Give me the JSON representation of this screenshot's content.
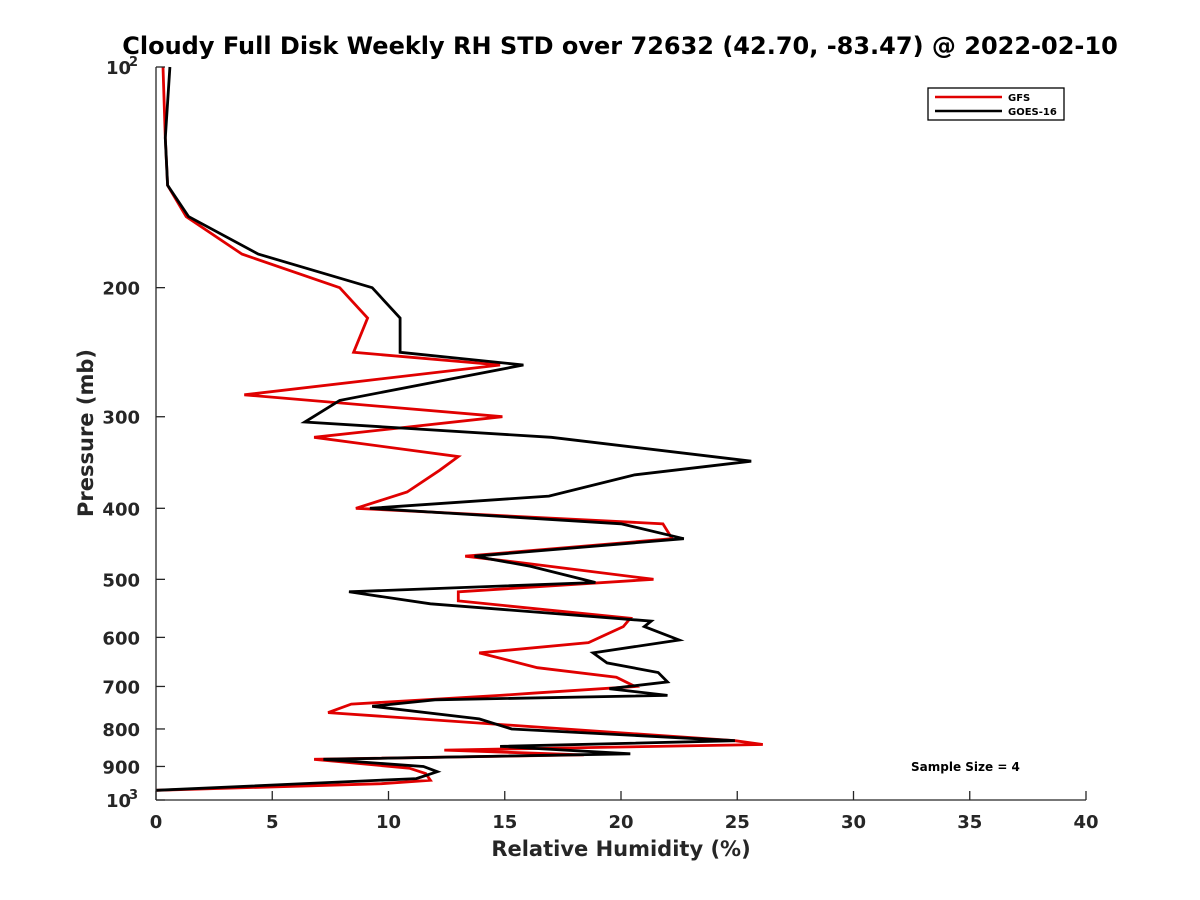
{
  "chart_data": {
    "type": "line",
    "title": "Cloudy Full Disk Weekly RH STD over 72632 (42.70, -83.47) @ 2022-02-10",
    "xlabel": "Relative Humidity (%)",
    "ylabel": "Pressure (mb)",
    "xlim": [
      0,
      40
    ],
    "ylim": [
      100,
      1000
    ],
    "y_scale": "log",
    "y_reversed": true,
    "grid": false,
    "legend_position": "top-right",
    "x_ticks": [
      "0",
      "5",
      "10",
      "15",
      "20",
      "25",
      "30",
      "35",
      "40"
    ],
    "y_ticks": [
      {
        "value": 100,
        "base": "10",
        "exp": "2"
      },
      {
        "value": 200,
        "label": "200"
      },
      {
        "value": 300,
        "label": "300"
      },
      {
        "value": 400,
        "label": "400"
      },
      {
        "value": 500,
        "label": "500"
      },
      {
        "value": 600,
        "label": "600"
      },
      {
        "value": 700,
        "label": "700"
      },
      {
        "value": 800,
        "label": "800"
      },
      {
        "value": 900,
        "label": "900"
      },
      {
        "value": 1000,
        "base": "10",
        "exp": "3"
      }
    ],
    "annotation": "Sample Size = 4",
    "series": [
      {
        "name": "GFS",
        "color": "#e00000",
        "x": [
          0.3,
          0.4,
          0.5,
          1.3,
          3.7,
          7.9,
          9.1,
          8.5,
          14.8,
          3.8,
          14.9,
          6.8,
          13.0,
          12.2,
          10.8,
          8.6,
          21.8,
          22.2,
          13.3,
          15.8,
          21.4,
          13.0,
          13.0,
          20.4,
          20.1,
          18.6,
          13.9,
          16.4,
          19.8,
          20.6,
          16.2,
          14.8,
          8.4,
          7.4,
          24.9,
          26.1,
          12.4,
          18.4,
          6.8,
          10.9,
          11.6,
          11.8,
          9.7,
          0.0
        ],
        "y": [
          100,
          125,
          145,
          160,
          180,
          200,
          220,
          245,
          255,
          280,
          300,
          320,
          340,
          355,
          380,
          400,
          420,
          440,
          465,
          475,
          500,
          520,
          535,
          565,
          580,
          610,
          630,
          660,
          680,
          700,
          715,
          720,
          740,
          760,
          830,
          840,
          855,
          868,
          880,
          905,
          920,
          940,
          950,
          970
        ]
      },
      {
        "name": "GOES-16",
        "color": "#000000",
        "x": [
          0.6,
          0.4,
          0.5,
          1.4,
          4.4,
          9.3,
          10.5,
          10.5,
          15.8,
          7.9,
          6.4,
          17.0,
          25.6,
          20.6,
          16.9,
          9.2,
          20.0,
          22.7,
          13.7,
          16.1,
          18.9,
          8.3,
          11.8,
          21.3,
          21.0,
          22.5,
          18.8,
          19.4,
          21.6,
          22.0,
          19.5,
          22.0,
          12.0,
          9.3,
          13.9,
          15.3,
          24.9,
          14.8,
          20.4,
          7.2,
          11.5,
          12.1,
          11.2,
          0.0
        ],
        "y": [
          100,
          125,
          145,
          160,
          180,
          200,
          220,
          245,
          255,
          285,
          305,
          320,
          345,
          360,
          385,
          400,
          420,
          440,
          465,
          480,
          505,
          520,
          540,
          570,
          580,
          605,
          630,
          650,
          670,
          690,
          705,
          720,
          730,
          745,
          775,
          800,
          830,
          845,
          865,
          880,
          900,
          915,
          935,
          970
        ]
      }
    ]
  }
}
